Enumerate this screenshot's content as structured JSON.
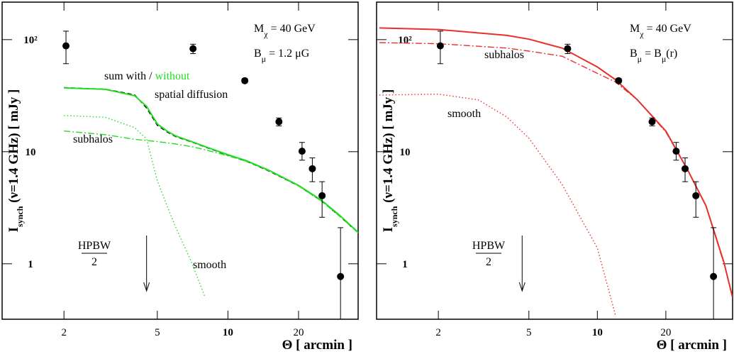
{
  "chart_data": [
    {
      "type": "line",
      "xscale": "log",
      "yscale": "log",
      "xlabel": "Θ [ arcmin ]",
      "ylabel": [
        {
          "t": "I"
        },
        {
          "t": "synch",
          "sub": true
        },
        {
          "t": "  (ν=1.4 GHz)  [ mJy ]"
        }
      ],
      "xlim": [
        1.09,
        35.9
      ],
      "ylim": [
        0.32,
        216
      ],
      "xticks": [
        2,
        5,
        10,
        20
      ],
      "yticks": [
        1,
        10,
        {
          "value": 100,
          "label": "10²"
        }
      ],
      "points": {
        "color": "#000000",
        "x": [
          2.04,
          7.1,
          11.8,
          16.5,
          20.7,
          22.9,
          25.2,
          30.2
        ],
        "values": [
          88,
          83,
          43,
          18.5,
          10.1,
          7.05,
          4.05,
          0.77
        ],
        "err_low": [
          61,
          75,
          41,
          17,
          8.4,
          5.4,
          2.6,
          0.3
        ],
        "err_high": [
          119,
          91,
          45,
          20,
          12.1,
          8.8,
          5.4,
          2.1
        ]
      },
      "series": [
        {
          "color": "#000000",
          "style": "dashed",
          "x": [
            2,
            3,
            4,
            4.5,
            5,
            5.5,
            6,
            7,
            8,
            10,
            12,
            15,
            20,
            25,
            30,
            36
          ],
          "values": [
            37.3,
            36.2,
            32.2,
            24.5,
            17.2,
            15.0,
            13.6,
            12.2,
            11.0,
            9.3,
            8.2,
            6.7,
            4.95,
            3.65,
            2.65,
            1.88
          ]
        },
        {
          "color": "#22dd22",
          "style": "solid",
          "x": [
            2,
            3,
            4,
            4.5,
            5,
            5.5,
            6,
            7,
            8,
            10,
            12,
            15,
            20,
            25,
            30,
            36
          ],
          "values": [
            37.1,
            36,
            31.6,
            25.4,
            17.7,
            15.3,
            13.8,
            12.3,
            11.1,
            9.4,
            8.3,
            6.8,
            5.0,
            3.7,
            2.7,
            1.9
          ]
        },
        {
          "color": "#22dd22",
          "style": "dotted",
          "x": [
            2,
            3,
            4,
            4.5,
            5,
            5.5,
            6,
            7,
            8
          ],
          "values": [
            21,
            20.3,
            16.4,
            13,
            5.5,
            3.3,
            2.1,
            1.03,
            0.5
          ]
        },
        {
          "color": "#22dd22",
          "style": "dashdot",
          "x": [
            2,
            3,
            4,
            4.5,
            5,
            5.5,
            6,
            7,
            8,
            10,
            12,
            15,
            20,
            25,
            30,
            36
          ],
          "values": [
            15.3,
            14.2,
            12.9,
            12.6,
            12.3,
            12,
            11.7,
            11.1,
            10.4,
            9.2,
            8.2,
            6.75,
            4.95,
            3.65,
            2.65,
            1.88
          ]
        }
      ],
      "annotations": [
        {
          "parts": [
            {
              "t": "M"
            },
            {
              "t": "χ",
              "sub": true
            },
            {
              "t": " = 40 GeV"
            }
          ]
        },
        {
          "color": "#22dd22",
          "parts": [
            {
              "t": "B"
            },
            {
              "t": "μ",
              "sub": true
            },
            {
              "t": " = 1.2 μG"
            }
          ]
        },
        {
          "parts": [
            {
              "t": "sum with / "
            },
            {
              "t": "without",
              "color": "#22dd22"
            }
          ]
        },
        {
          "parts": [
            {
              "t": "spatial diffusion"
            }
          ]
        },
        {
          "parts": [
            {
              "t": "subhalos"
            }
          ]
        },
        {
          "parts": [
            {
              "t": "smooth"
            }
          ]
        }
      ],
      "hpbw": {
        "top": "HPBW",
        "bottom": "2",
        "x": 4.5
      }
    },
    {
      "type": "line",
      "xscale": "log",
      "yscale": "log",
      "xlabel": "Θ [ arcmin ]",
      "ylabel": [
        {
          "t": "I"
        },
        {
          "t": "synch",
          "sub": true
        },
        {
          "t": "  (ν=1.4 GHz)  [ mJy ]"
        }
      ],
      "xlim": [
        1.07,
        39.3
      ],
      "ylim": [
        0.32,
        216
      ],
      "xticks": [
        2,
        5,
        10,
        20
      ],
      "yticks": [
        1,
        10,
        {
          "value": 100,
          "label": "10²"
        }
      ],
      "points": {
        "color": "#000000",
        "x": [
          2.04,
          7.4,
          12.4,
          17.4,
          22.2,
          24.3,
          27.1,
          32.4
        ],
        "values": [
          88,
          83,
          43,
          18.5,
          10.1,
          7.05,
          4.05,
          0.77
        ],
        "err_low": [
          61,
          75,
          41,
          17,
          8.4,
          5.4,
          2.6,
          0.3
        ],
        "err_high": [
          119,
          91,
          45,
          20,
          12.1,
          8.8,
          5.4,
          2.1
        ]
      },
      "series": [
        {
          "color": "#e8302a",
          "style": "solid",
          "x": [
            1.1,
            2,
            4,
            5,
            7,
            10,
            12,
            15,
            20,
            25,
            30,
            36,
            39.3
          ],
          "values": [
            127,
            123,
            109,
            101,
            84,
            57,
            44,
            29,
            15.3,
            6.8,
            3.3,
            1.03,
            0.5
          ]
        },
        {
          "color": "#e8302a",
          "style": "dashdot",
          "x": [
            1.1,
            2,
            4,
            5,
            7,
            10,
            12,
            15,
            20,
            25,
            30,
            36
          ],
          "values": [
            94,
            92,
            84,
            79,
            71,
            50,
            42,
            29,
            15,
            6.8,
            3.3,
            1.0
          ]
        },
        {
          "color": "#e8302a",
          "style": "dotted",
          "x": [
            1.1,
            2,
            3,
            4,
            5,
            7,
            10,
            12
          ],
          "values": [
            32,
            32.6,
            29,
            20.4,
            13.2,
            5.1,
            1.38,
            0.35
          ]
        }
      ],
      "annotations": [
        {
          "parts": [
            {
              "t": "M"
            },
            {
              "t": "χ",
              "sub": true
            },
            {
              "t": " = 40 GeV"
            }
          ]
        },
        {
          "color": "#e8302a",
          "parts": [
            {
              "t": "B"
            },
            {
              "t": "μ",
              "sub": true
            },
            {
              "t": " = B"
            },
            {
              "t": "μ",
              "sub": true
            },
            {
              "t": "(r)"
            }
          ]
        },
        {
          "parts": [
            {
              "t": "subhalos"
            }
          ]
        },
        {
          "parts": [
            {
              "t": "smooth"
            }
          ]
        }
      ],
      "hpbw": {
        "top": "HPBW",
        "bottom": "2",
        "x": 4.67
      }
    }
  ]
}
